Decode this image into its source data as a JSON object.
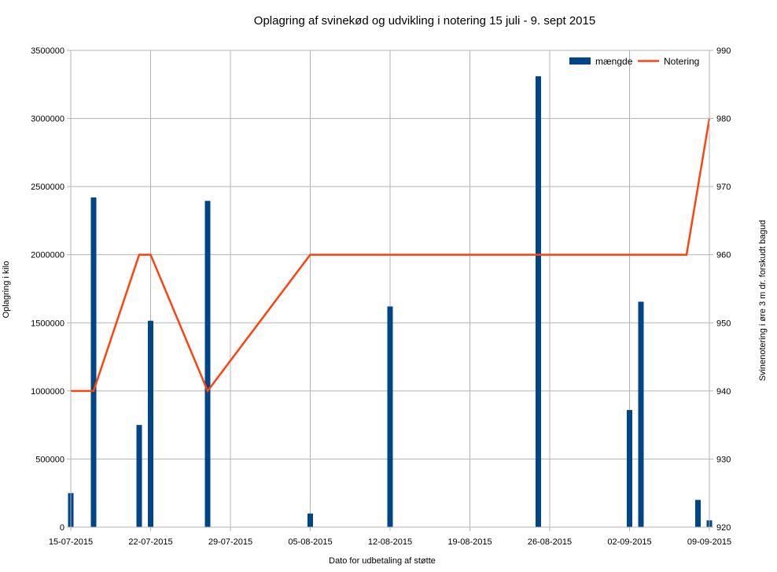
{
  "chart_data": {
    "type": "bar",
    "title": "Oplagring af svinekød og udvikling i notering 15 juli - 9. sept 2015",
    "xlabel": "Dato for udbetaling af støtte",
    "ylabel": "Oplagring i kilo",
    "y2label": "Svinenotering i øre 3 m dr. forskudt bagud",
    "x_range": [
      "15-07-2015",
      "09-09-2015"
    ],
    "x_ticks": [
      "15-07-2015",
      "22-07-2015",
      "29-07-2015",
      "05-08-2015",
      "12-08-2015",
      "19-08-2015",
      "26-08-2015",
      "02-09-2015",
      "09-09-2015"
    ],
    "ylim": [
      0,
      3500000
    ],
    "y_ticks": [
      "0",
      "500000",
      "1000000",
      "1500000",
      "2000000",
      "2500000",
      "3000000",
      "3500000"
    ],
    "y2lim": [
      920,
      990
    ],
    "y2_ticks": [
      "920",
      "930",
      "940",
      "950",
      "960",
      "970",
      "980",
      "990"
    ],
    "grid": true,
    "legend_position": "top-right",
    "series": [
      {
        "name": "mængde",
        "type": "bar",
        "axis": "left",
        "color": "#004586",
        "points": [
          {
            "x": "15-07-2015",
            "y": 250000
          },
          {
            "x": "17-07-2015",
            "y": 2420000
          },
          {
            "x": "21-07-2015",
            "y": 750000
          },
          {
            "x": "22-07-2015",
            "y": 1515000
          },
          {
            "x": "27-07-2015",
            "y": 2395000
          },
          {
            "x": "05-08-2015",
            "y": 100000
          },
          {
            "x": "12-08-2015",
            "y": 1620000
          },
          {
            "x": "25-08-2015",
            "y": 3310000
          },
          {
            "x": "02-09-2015",
            "y": 860000
          },
          {
            "x": "03-09-2015",
            "y": 1655000
          },
          {
            "x": "08-09-2015",
            "y": 200000
          },
          {
            "x": "09-09-2015",
            "y": 50000
          }
        ]
      },
      {
        "name": "Notering",
        "type": "line",
        "axis": "right",
        "color": "#ff420e",
        "points": [
          {
            "x": "15-07-2015",
            "y": 940
          },
          {
            "x": "17-07-2015",
            "y": 940
          },
          {
            "x": "21-07-2015",
            "y": 960
          },
          {
            "x": "22-07-2015",
            "y": 960
          },
          {
            "x": "27-07-2015",
            "y": 940
          },
          {
            "x": "05-08-2015",
            "y": 960
          },
          {
            "x": "12-08-2015",
            "y": 960
          },
          {
            "x": "25-08-2015",
            "y": 960
          },
          {
            "x": "02-09-2015",
            "y": 960
          },
          {
            "x": "03-09-2015",
            "y": 960
          },
          {
            "x": "07-09-2015",
            "y": 960
          },
          {
            "x": "09-09-2015",
            "y": 980
          }
        ]
      }
    ]
  }
}
